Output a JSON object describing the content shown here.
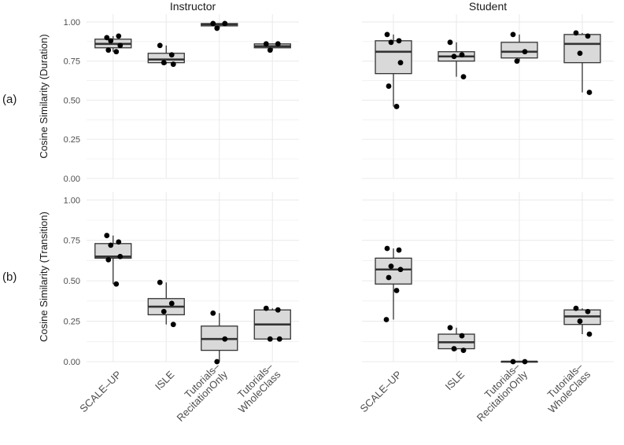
{
  "chart_data": {
    "type": "boxplot",
    "layout": "faceted 2x2 grid",
    "facets": [
      "Instructor",
      "Student"
    ],
    "row_tags": [
      "(a)",
      "(b)"
    ],
    "categories": [
      "SCALE–UP",
      "ISLE",
      "Tutorials–RecitationOnly",
      "Tutorials–WholeClass"
    ],
    "category_label_lines": [
      [
        "SCALE–UP"
      ],
      [
        "ISLE"
      ],
      [
        "Tutorials–",
        "RecitationOnly"
      ],
      [
        "Tutorials–",
        "WholeClass"
      ]
    ],
    "yticks": [
      "0.00",
      "0.25",
      "0.50",
      "0.75",
      "1.00"
    ],
    "ylim": [
      0,
      1.05
    ],
    "grid": true,
    "legend": "none",
    "colors": {
      "box_fill": "#d9d9d9",
      "box_line": "#333333",
      "point": "#000000",
      "grid": "#ebebeb"
    },
    "rows": [
      {
        "ylabel": "Cosine Similarity (Duration)",
        "panels": [
          {
            "facet": "Instructor",
            "boxes": [
              {
                "category": "SCALE–UP",
                "whisker_low": 0.81,
                "q1": 0.835,
                "median": 0.86,
                "q3": 0.89,
                "whisker_high": 0.91,
                "points": [
                  0.9,
                  0.91,
                  0.88,
                  0.85,
                  0.82,
                  0.81
                ]
              },
              {
                "category": "ISLE",
                "whisker_low": 0.73,
                "q1": 0.74,
                "median": 0.76,
                "q3": 0.8,
                "whisker_high": 0.85,
                "points": [
                  0.85,
                  0.79,
                  0.74,
                  0.73
                ]
              },
              {
                "category": "Tutorials–RecitationOnly",
                "whisker_low": 0.96,
                "q1": 0.975,
                "median": 0.985,
                "q3": 0.99,
                "whisker_high": 0.99,
                "points": [
                  0.99,
                  0.99,
                  0.96
                ]
              },
              {
                "category": "Tutorials–WholeClass",
                "whisker_low": 0.82,
                "q1": 0.835,
                "median": 0.845,
                "q3": 0.86,
                "whisker_high": 0.86,
                "points": [
                  0.86,
                  0.86,
                  0.82
                ]
              }
            ]
          },
          {
            "facet": "Student",
            "boxes": [
              {
                "category": "SCALE–UP",
                "whisker_low": 0.46,
                "q1": 0.67,
                "median": 0.81,
                "q3": 0.88,
                "whisker_high": 0.92,
                "points": [
                  0.92,
                  0.88,
                  0.87,
                  0.74,
                  0.59,
                  0.46
                ]
              },
              {
                "category": "ISLE",
                "whisker_low": 0.65,
                "q1": 0.75,
                "median": 0.78,
                "q3": 0.81,
                "whisker_high": 0.87,
                "points": [
                  0.87,
                  0.79,
                  0.78,
                  0.65
                ]
              },
              {
                "category": "Tutorials–RecitationOnly",
                "whisker_low": 0.75,
                "q1": 0.77,
                "median": 0.81,
                "q3": 0.87,
                "whisker_high": 0.92,
                "points": [
                  0.92,
                  0.81,
                  0.75
                ]
              },
              {
                "category": "Tutorials–WholeClass",
                "whisker_low": 0.55,
                "q1": 0.74,
                "median": 0.86,
                "q3": 0.92,
                "whisker_high": 0.93,
                "points": [
                  0.93,
                  0.91,
                  0.8,
                  0.55
                ]
              }
            ]
          }
        ]
      },
      {
        "ylabel": "Cosine Similarity (Transition)",
        "panels": [
          {
            "facet": "Instructor",
            "boxes": [
              {
                "category": "SCALE–UP",
                "whisker_low": 0.48,
                "q1": 0.64,
                "median": 0.65,
                "q3": 0.73,
                "whisker_high": 0.78,
                "points": [
                  0.78,
                  0.74,
                  0.72,
                  0.65,
                  0.63,
                  0.48
                ]
              },
              {
                "category": "ISLE",
                "whisker_low": 0.23,
                "q1": 0.29,
                "median": 0.34,
                "q3": 0.39,
                "whisker_high": 0.49,
                "points": [
                  0.49,
                  0.36,
                  0.31,
                  0.23
                ]
              },
              {
                "category": "Tutorials–RecitationOnly",
                "whisker_low": 0.0,
                "q1": 0.07,
                "median": 0.14,
                "q3": 0.22,
                "whisker_high": 0.3,
                "points": [
                  0.3,
                  0.14,
                  0.0
                ]
              },
              {
                "category": "Tutorials–WholeClass",
                "whisker_low": 0.14,
                "q1": 0.14,
                "median": 0.23,
                "q3": 0.32,
                "whisker_high": 0.33,
                "points": [
                  0.33,
                  0.32,
                  0.14,
                  0.14
                ]
              }
            ]
          },
          {
            "facet": "Student",
            "boxes": [
              {
                "category": "SCALE–UP",
                "whisker_low": 0.26,
                "q1": 0.48,
                "median": 0.57,
                "q3": 0.64,
                "whisker_high": 0.7,
                "points": [
                  0.7,
                  0.69,
                  0.59,
                  0.57,
                  0.52,
                  0.44,
                  0.26
                ]
              },
              {
                "category": "ISLE",
                "whisker_low": 0.07,
                "q1": 0.08,
                "median": 0.12,
                "q3": 0.17,
                "whisker_high": 0.21,
                "points": [
                  0.21,
                  0.16,
                  0.08,
                  0.07
                ]
              },
              {
                "category": "Tutorials–RecitationOnly",
                "whisker_low": 0.0,
                "q1": 0.0,
                "median": 0.0,
                "q3": 0.0,
                "whisker_high": 0.0,
                "points": [
                  0.0,
                  0.0
                ]
              },
              {
                "category": "Tutorials–WholeClass",
                "whisker_low": 0.17,
                "q1": 0.23,
                "median": 0.28,
                "q3": 0.32,
                "whisker_high": 0.33,
                "points": [
                  0.33,
                  0.31,
                  0.25,
                  0.17
                ]
              }
            ]
          }
        ]
      }
    ]
  }
}
